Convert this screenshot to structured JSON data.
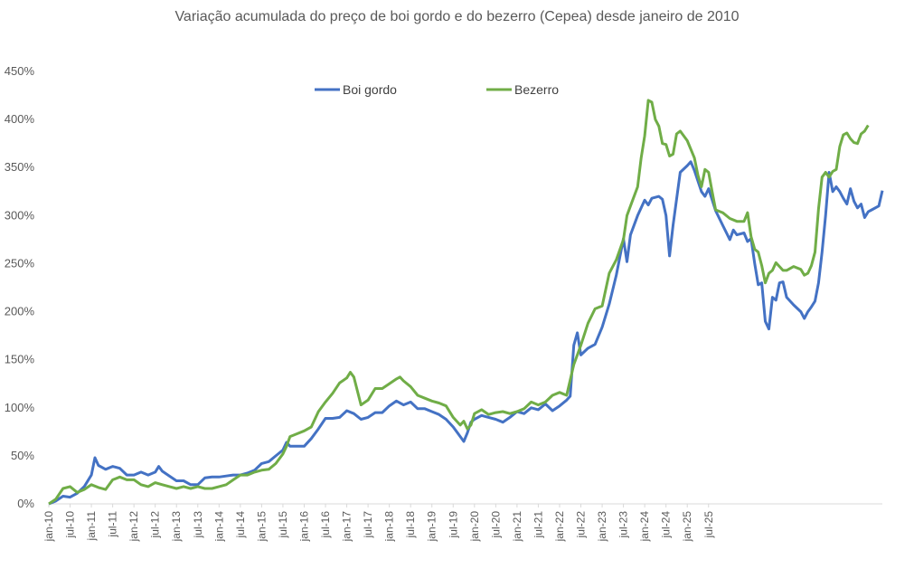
{
  "chart_data": {
    "type": "line",
    "title": "Variação acumulada do preço de boi gordo  e do bezerro (Cepea) desde janeiro de 2010",
    "xlabel": "",
    "ylabel": "",
    "ylim": [
      0,
      450
    ],
    "y_ticks": [
      "0%",
      "50%",
      "100%",
      "150%",
      "200%",
      "250%",
      "300%",
      "350%",
      "400%",
      "450%"
    ],
    "x_ticks": [
      "jan-10",
      "jul-10",
      "jan-11",
      "jul-11",
      "jan-12",
      "jul-12",
      "jan-13",
      "jul-13",
      "jan-14",
      "jul-14",
      "jan-15",
      "jul-15",
      "jan-16",
      "jul-16",
      "jan-17",
      "jul-17",
      "jan-18",
      "jul-18",
      "jan-19",
      "jul-19",
      "jan-20",
      "jul-20",
      "jan-21",
      "jul-21",
      "jan-22",
      "jul-22",
      "jan-23",
      "jul-23",
      "jan-24",
      "jul-24",
      "jan-25",
      "jul-25"
    ],
    "grid": false,
    "legend_position": "top-center",
    "series": [
      {
        "name": "Boi gordo",
        "color": "#4472C4",
        "points": [
          [
            0,
            0
          ],
          [
            2,
            3
          ],
          [
            4,
            8
          ],
          [
            6,
            7
          ],
          [
            8,
            11
          ],
          [
            10,
            18
          ],
          [
            12,
            30
          ],
          [
            13,
            48
          ],
          [
            14,
            40
          ],
          [
            16,
            36
          ],
          [
            18,
            39
          ],
          [
            20,
            37
          ],
          [
            22,
            30
          ],
          [
            24,
            30
          ],
          [
            26,
            33
          ],
          [
            28,
            30
          ],
          [
            30,
            33
          ],
          [
            31,
            39
          ],
          [
            32,
            34
          ],
          [
            34,
            29
          ],
          [
            36,
            24
          ],
          [
            38,
            24
          ],
          [
            40,
            20
          ],
          [
            42,
            20
          ],
          [
            44,
            27
          ],
          [
            46,
            28
          ],
          [
            48,
            28
          ],
          [
            50,
            29
          ],
          [
            52,
            30
          ],
          [
            54,
            30
          ],
          [
            56,
            32
          ],
          [
            58,
            35
          ],
          [
            60,
            42
          ],
          [
            62,
            44
          ],
          [
            64,
            50
          ],
          [
            66,
            56
          ],
          [
            67,
            64
          ],
          [
            68,
            60
          ],
          [
            70,
            60
          ],
          [
            72,
            60
          ],
          [
            74,
            68
          ],
          [
            76,
            78
          ],
          [
            78,
            89
          ],
          [
            80,
            89
          ],
          [
            82,
            90
          ],
          [
            84,
            97
          ],
          [
            86,
            94
          ],
          [
            88,
            88
          ],
          [
            90,
            90
          ],
          [
            92,
            95
          ],
          [
            94,
            95
          ],
          [
            96,
            102
          ],
          [
            98,
            107
          ],
          [
            100,
            103
          ],
          [
            102,
            106
          ],
          [
            104,
            99
          ],
          [
            106,
            99
          ],
          [
            108,
            96
          ],
          [
            110,
            93
          ],
          [
            112,
            88
          ],
          [
            114,
            80
          ],
          [
            116,
            70
          ],
          [
            117,
            65
          ],
          [
            118,
            74
          ],
          [
            119,
            85
          ],
          [
            120,
            88
          ],
          [
            122,
            92
          ],
          [
            124,
            90
          ],
          [
            126,
            88
          ],
          [
            128,
            85
          ],
          [
            130,
            90
          ],
          [
            132,
            96
          ],
          [
            134,
            94
          ],
          [
            136,
            100
          ],
          [
            138,
            98
          ],
          [
            140,
            104
          ],
          [
            142,
            97
          ],
          [
            144,
            102
          ],
          [
            146,
            108
          ],
          [
            147,
            112
          ],
          [
            148,
            165
          ],
          [
            149,
            178
          ],
          [
            150,
            155
          ],
          [
            152,
            162
          ],
          [
            154,
            166
          ],
          [
            156,
            184
          ],
          [
            158,
            208
          ],
          [
            160,
            238
          ],
          [
            162,
            276
          ],
          [
            163,
            252
          ],
          [
            164,
            280
          ],
          [
            166,
            300
          ],
          [
            168,
            316
          ],
          [
            169,
            311
          ],
          [
            170,
            318
          ],
          [
            172,
            320
          ],
          [
            173,
            317
          ],
          [
            174,
            300
          ],
          [
            175,
            258
          ],
          [
            176,
            290
          ],
          [
            178,
            345
          ],
          [
            180,
            352
          ],
          [
            181,
            356
          ],
          [
            182,
            347
          ],
          [
            184,
            325
          ],
          [
            185,
            320
          ],
          [
            186,
            328
          ],
          [
            188,
            305
          ],
          [
            190,
            290
          ],
          [
            192,
            275
          ],
          [
            193,
            285
          ],
          [
            194,
            280
          ],
          [
            196,
            282
          ],
          [
            197,
            273
          ],
          [
            198,
            276
          ],
          [
            199,
            250
          ],
          [
            200,
            228
          ],
          [
            201,
            230
          ],
          [
            202,
            190
          ],
          [
            203,
            182
          ],
          [
            204,
            215
          ],
          [
            205,
            212
          ],
          [
            206,
            230
          ],
          [
            207,
            231
          ],
          [
            208,
            215
          ],
          [
            210,
            207
          ],
          [
            212,
            200
          ],
          [
            213,
            193
          ],
          [
            214,
            200
          ],
          [
            215,
            205
          ],
          [
            216,
            211
          ],
          [
            217,
            230
          ],
          [
            218,
            262
          ],
          [
            219,
            300
          ],
          [
            220,
            345
          ],
          [
            221,
            325
          ],
          [
            222,
            330
          ],
          [
            223,
            325
          ],
          [
            224,
            318
          ],
          [
            225,
            312
          ],
          [
            226,
            328
          ],
          [
            227,
            315
          ],
          [
            228,
            308
          ],
          [
            229,
            312
          ],
          [
            230,
            298
          ],
          [
            231,
            304
          ],
          [
            232,
            306
          ],
          [
            234,
            310
          ],
          [
            235,
            326
          ]
        ]
      },
      {
        "name": "Bezerro",
        "color": "#70AD47",
        "points": [
          [
            0,
            0
          ],
          [
            2,
            5
          ],
          [
            4,
            16
          ],
          [
            6,
            18
          ],
          [
            8,
            12
          ],
          [
            10,
            15
          ],
          [
            12,
            20
          ],
          [
            14,
            17
          ],
          [
            16,
            15
          ],
          [
            18,
            25
          ],
          [
            20,
            28
          ],
          [
            22,
            25
          ],
          [
            24,
            25
          ],
          [
            26,
            20
          ],
          [
            28,
            18
          ],
          [
            30,
            22
          ],
          [
            32,
            20
          ],
          [
            34,
            18
          ],
          [
            36,
            16
          ],
          [
            38,
            18
          ],
          [
            40,
            16
          ],
          [
            42,
            18
          ],
          [
            44,
            16
          ],
          [
            46,
            16
          ],
          [
            48,
            18
          ],
          [
            50,
            20
          ],
          [
            52,
            25
          ],
          [
            54,
            30
          ],
          [
            56,
            30
          ],
          [
            58,
            33
          ],
          [
            60,
            35
          ],
          [
            62,
            36
          ],
          [
            64,
            42
          ],
          [
            66,
            52
          ],
          [
            67,
            60
          ],
          [
            68,
            70
          ],
          [
            70,
            73
          ],
          [
            72,
            76
          ],
          [
            74,
            80
          ],
          [
            76,
            96
          ],
          [
            78,
            106
          ],
          [
            80,
            115
          ],
          [
            82,
            126
          ],
          [
            84,
            131
          ],
          [
            85,
            137
          ],
          [
            86,
            132
          ],
          [
            88,
            103
          ],
          [
            90,
            108
          ],
          [
            92,
            120
          ],
          [
            94,
            120
          ],
          [
            96,
            125
          ],
          [
            98,
            130
          ],
          [
            99,
            132
          ],
          [
            100,
            128
          ],
          [
            102,
            122
          ],
          [
            104,
            113
          ],
          [
            106,
            110
          ],
          [
            108,
            107
          ],
          [
            110,
            105
          ],
          [
            112,
            102
          ],
          [
            114,
            90
          ],
          [
            116,
            82
          ],
          [
            117,
            86
          ],
          [
            118,
            78
          ],
          [
            119,
            82
          ],
          [
            120,
            94
          ],
          [
            122,
            98
          ],
          [
            124,
            93
          ],
          [
            126,
            95
          ],
          [
            128,
            96
          ],
          [
            130,
            94
          ],
          [
            132,
            96
          ],
          [
            134,
            99
          ],
          [
            136,
            106
          ],
          [
            138,
            103
          ],
          [
            140,
            106
          ],
          [
            142,
            113
          ],
          [
            144,
            116
          ],
          [
            146,
            113
          ],
          [
            148,
            145
          ],
          [
            149,
            155
          ],
          [
            150,
            165
          ],
          [
            152,
            188
          ],
          [
            154,
            203
          ],
          [
            156,
            206
          ],
          [
            158,
            240
          ],
          [
            160,
            254
          ],
          [
            162,
            275
          ],
          [
            163,
            300
          ],
          [
            164,
            310
          ],
          [
            166,
            330
          ],
          [
            167,
            360
          ],
          [
            168,
            383
          ],
          [
            169,
            420
          ],
          [
            170,
            418
          ],
          [
            171,
            400
          ],
          [
            172,
            393
          ],
          [
            173,
            375
          ],
          [
            174,
            374
          ],
          [
            175,
            362
          ],
          [
            176,
            364
          ],
          [
            177,
            385
          ],
          [
            178,
            388
          ],
          [
            180,
            378
          ],
          [
            182,
            360
          ],
          [
            183,
            342
          ],
          [
            184,
            330
          ],
          [
            185,
            348
          ],
          [
            186,
            345
          ],
          [
            187,
            325
          ],
          [
            188,
            306
          ],
          [
            190,
            303
          ],
          [
            192,
            297
          ],
          [
            194,
            294
          ],
          [
            196,
            294
          ],
          [
            197,
            303
          ],
          [
            198,
            278
          ],
          [
            199,
            265
          ],
          [
            200,
            262
          ],
          [
            201,
            248
          ],
          [
            202,
            230
          ],
          [
            203,
            240
          ],
          [
            204,
            243
          ],
          [
            205,
            251
          ],
          [
            206,
            247
          ],
          [
            207,
            243
          ],
          [
            208,
            243
          ],
          [
            210,
            247
          ],
          [
            212,
            244
          ],
          [
            213,
            238
          ],
          [
            214,
            240
          ],
          [
            215,
            248
          ],
          [
            216,
            262
          ],
          [
            217,
            307
          ],
          [
            218,
            340
          ],
          [
            219,
            345
          ],
          [
            220,
            340
          ],
          [
            221,
            346
          ],
          [
            222,
            348
          ],
          [
            223,
            372
          ],
          [
            224,
            384
          ],
          [
            225,
            386
          ],
          [
            226,
            380
          ],
          [
            227,
            376
          ],
          [
            228,
            375
          ],
          [
            229,
            385
          ],
          [
            230,
            388
          ],
          [
            231,
            394
          ]
        ]
      }
    ]
  }
}
